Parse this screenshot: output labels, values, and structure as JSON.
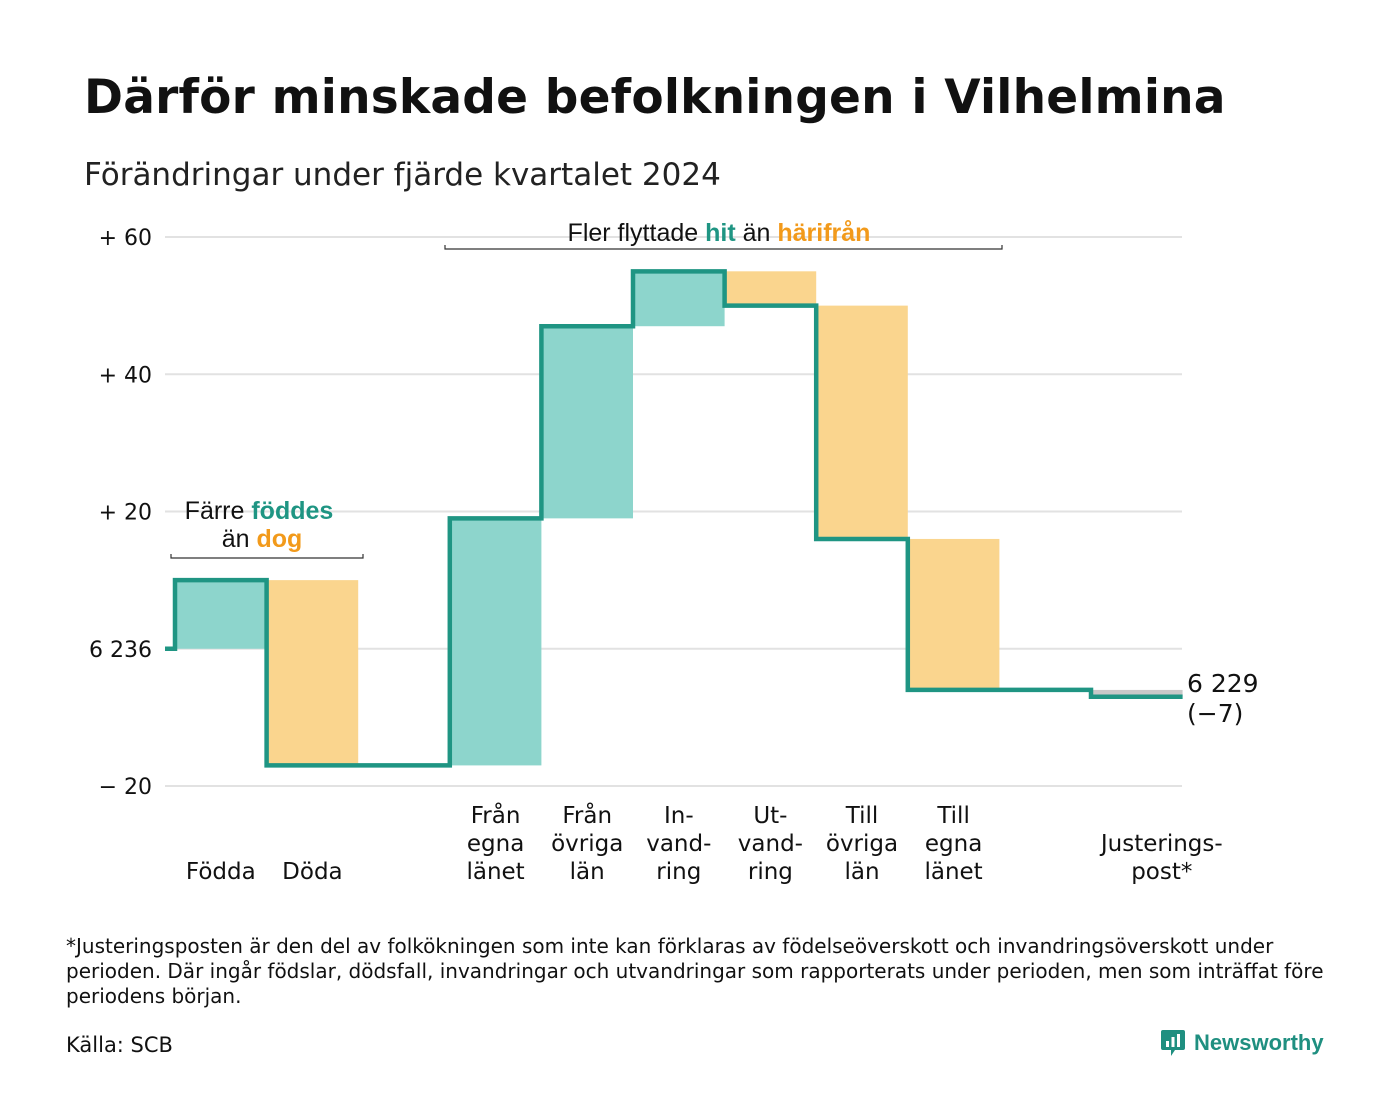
{
  "title": "Därför minskade befolkningen i Vilhelmina",
  "subtitle": "Förändringar under fjärde kvartalet 2024",
  "chart_data": {
    "type": "waterfall",
    "baseline_label": "6 236",
    "yticks": [
      {
        "value": 60,
        "label": "+ 60"
      },
      {
        "value": 40,
        "label": "+ 40"
      },
      {
        "value": 20,
        "label": "+ 20"
      },
      {
        "value": 0,
        "label": "6 236"
      },
      {
        "value": -20,
        "label": "− 20"
      }
    ],
    "ylim": [
      -20,
      60
    ],
    "grid": true,
    "steps": [
      {
        "label_lines": [
          "Födda"
        ],
        "change": 10,
        "kind": "in"
      },
      {
        "label_lines": [
          "Döda"
        ],
        "change": -27,
        "kind": "out"
      },
      {
        "label_lines": [],
        "change": 0,
        "kind": "gap"
      },
      {
        "label_lines": [
          "Från",
          "egna",
          "länet"
        ],
        "change": 36,
        "kind": "in"
      },
      {
        "label_lines": [
          "Från",
          "övriga",
          "län"
        ],
        "change": 28,
        "kind": "in"
      },
      {
        "label_lines": [
          "In-",
          "vand-",
          "ring"
        ],
        "change": 8,
        "kind": "in"
      },
      {
        "label_lines": [
          "Ut-",
          "vand-",
          "ring"
        ],
        "change": -5,
        "kind": "out"
      },
      {
        "label_lines": [
          "Till",
          "övriga",
          "län"
        ],
        "change": -34,
        "kind": "out"
      },
      {
        "label_lines": [
          "Till",
          "egna",
          "länet"
        ],
        "change": -22,
        "kind": "out"
      },
      {
        "label_lines": [],
        "change": 0,
        "kind": "gap"
      },
      {
        "label_lines": [
          "Justerings-",
          "post*"
        ],
        "change": -1,
        "kind": "adj"
      }
    ],
    "end_label": {
      "line1": "6 229",
      "line2": "(−7)"
    },
    "annotations": [
      {
        "parts": [
          {
            "text": "Färre ",
            "color": "#111111",
            "bold": false
          },
          {
            "text": "föddes",
            "color": "#1f9583",
            "bold": true
          }
        ],
        "parts2": [
          {
            "text": "än ",
            "color": "#111111",
            "bold": false
          },
          {
            "text": "dog",
            "color": "#f29a1b",
            "bold": true
          }
        ]
      },
      {
        "parts": [
          {
            "text": "Fler flyttade ",
            "color": "#111111",
            "bold": false
          },
          {
            "text": "hit",
            "color": "#1f9583",
            "bold": true
          },
          {
            "text": " än ",
            "color": "#111111",
            "bold": false
          },
          {
            "text": "härifrån",
            "color": "#f29a1b",
            "bold": true
          }
        ]
      }
    ],
    "colors": {
      "in": "#8dd5cc",
      "out": "#fad58e",
      "adj": "#c8c8c8",
      "line": "#1f9583",
      "grid": "#e2e2e2"
    }
  },
  "footnote": "*Justeringsposten är den del av folkökningen som inte kan förklaras av födelseöverskott och invandringsöverskott under perioden. Där ingår födslar, dödsfall, invandringar och utvandringar som rapporterats under perioden, men som inträffat före periodens början.",
  "source": "Källa: SCB",
  "brand": "Newsworthy"
}
